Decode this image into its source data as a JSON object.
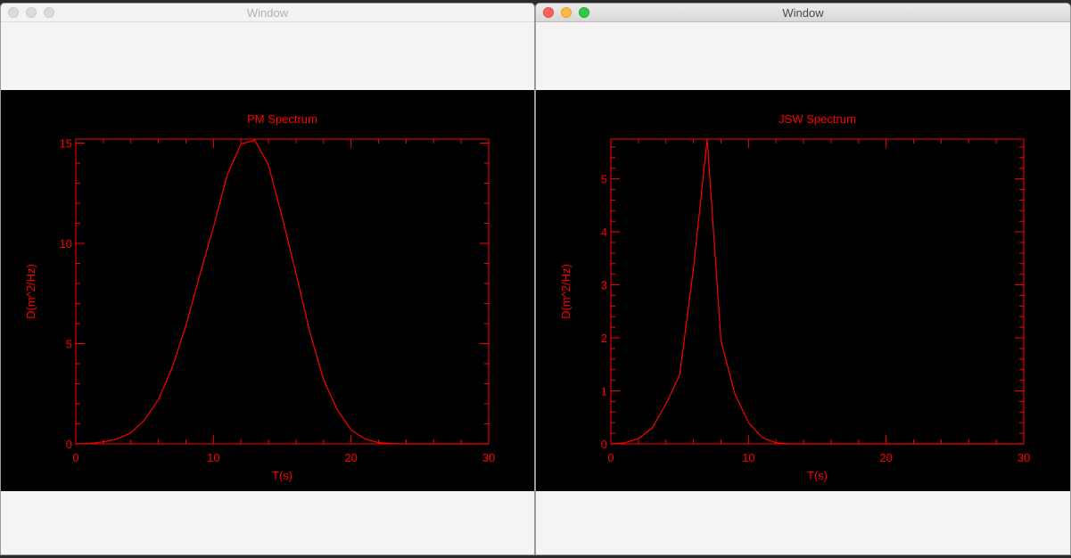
{
  "windows": [
    {
      "title": "Window",
      "active": false
    },
    {
      "title": "Window",
      "active": true
    }
  ],
  "chart_data": [
    {
      "type": "line",
      "title": "PM Spectrum",
      "xlabel": "T(s)",
      "ylabel": "D(m^2/Hz)",
      "xlim": [
        0,
        30
      ],
      "ylim": [
        0,
        15.2
      ],
      "xticks": [
        0,
        10,
        20,
        30
      ],
      "yticks": [
        0,
        5,
        10,
        15
      ],
      "x_minor_step": 2,
      "y_minor_step": 1,
      "grid": false,
      "color": "#ff0000",
      "series": [
        {
          "x": [
            0,
            1,
            2,
            3,
            4,
            5,
            6,
            7,
            8,
            9,
            10,
            11,
            12,
            13,
            14,
            15,
            16,
            17,
            18,
            19,
            20,
            21,
            22,
            23,
            24,
            25,
            26,
            27,
            28,
            29,
            30
          ],
          "y": [
            0,
            0.02,
            0.1,
            0.25,
            0.55,
            1.2,
            2.2,
            3.8,
            5.9,
            8.4,
            10.8,
            13.4,
            14.95,
            15.15,
            13.9,
            11.3,
            8.5,
            5.6,
            3.2,
            1.7,
            0.7,
            0.25,
            0.06,
            0.02,
            0,
            0,
            0,
            0,
            0,
            0,
            0
          ]
        }
      ]
    },
    {
      "type": "line",
      "title": "JSW Spectrum",
      "xlabel": "T(s)",
      "ylabel": "D(m^2/Hz)",
      "xlim": [
        0,
        30
      ],
      "ylim": [
        0,
        5.75
      ],
      "xticks": [
        0,
        10,
        20,
        30
      ],
      "yticks": [
        0,
        1,
        2,
        3,
        4,
        5
      ],
      "x_minor_step": 2,
      "y_minor_step": 0.2,
      "grid": false,
      "color": "#ff0000",
      "series": [
        {
          "x": [
            0,
            1,
            2,
            3,
            4,
            5,
            6,
            7,
            8,
            9,
            10,
            11,
            12,
            13,
            14,
            15,
            16,
            17,
            18,
            19,
            20,
            21,
            22,
            23,
            24,
            25,
            26,
            27,
            28,
            29,
            30
          ],
          "y": [
            0,
            0.02,
            0.1,
            0.3,
            0.75,
            1.3,
            3.3,
            5.75,
            1.95,
            0.95,
            0.4,
            0.12,
            0.02,
            0,
            0,
            0,
            0,
            0,
            0,
            0,
            0,
            0,
            0,
            0,
            0,
            0,
            0,
            0,
            0,
            0,
            0
          ]
        }
      ]
    }
  ]
}
